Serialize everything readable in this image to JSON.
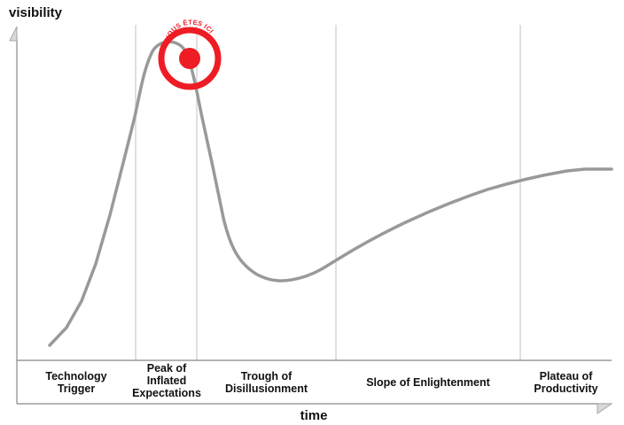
{
  "axes": {
    "y_label": "visibility",
    "x_label": "time"
  },
  "phases": [
    {
      "label": "Technology Trigger"
    },
    {
      "label": "Peak of Inflated Expectations"
    },
    {
      "label": "Trough of Disillusionment"
    },
    {
      "label": "Slope of Enlightenment"
    },
    {
      "label": "Plateau of Productivity"
    }
  ],
  "marker": {
    "text": "VOUS ÊTES ICI",
    "color": "#ee1c24"
  },
  "curve": {
    "color": "#999999"
  }
}
